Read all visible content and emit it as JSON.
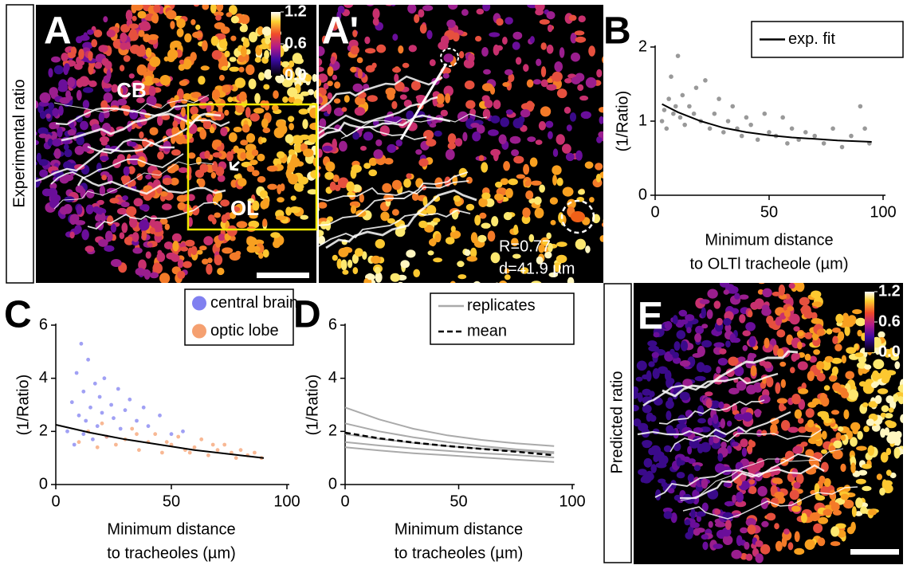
{
  "image_panels": [
    {
      "label": "A",
      "side_label": "Experimental ratio",
      "annotations": [
        "CB",
        "OL"
      ],
      "clim": [
        0,
        1.2
      ],
      "cticks": [
        1.2,
        0.6,
        {
          "value": 0,
          "label": "0.0"
        }
      ]
    },
    {
      "label": "A'",
      "annotations": [
        "R=0.77",
        "d=41.9 µm"
      ]
    },
    {
      "label": "E",
      "side_label": "Predicted ratio",
      "clim": [
        0,
        1.2
      ],
      "cticks": [
        1.2,
        0.6,
        {
          "value": 0,
          "label": "0.0"
        }
      ]
    }
  ],
  "chart_data": [
    {
      "type": "scatter",
      "label": "B",
      "ylabel": "(1/Ratio)",
      "xlabel": [
        "Minimum distance",
        "to OLTl tracheole (µm)"
      ],
      "xlim": [
        0,
        100
      ],
      "ylim": [
        0,
        2
      ],
      "xticks": [
        0,
        50,
        100
      ],
      "yticks": [
        0,
        1,
        2
      ],
      "legend": "upper right",
      "series": [
        {
          "color": "#999999",
          "style": "points",
          "x": [
            3,
            4,
            5,
            6,
            7,
            8,
            9,
            10,
            11,
            12,
            13,
            15,
            17,
            18,
            20,
            22,
            24,
            26,
            28,
            30,
            32,
            34,
            36,
            38,
            40,
            42,
            45,
            48,
            50,
            53,
            56,
            58,
            60,
            63,
            66,
            70,
            74,
            78,
            82,
            86,
            90,
            92,
            94
          ],
          "values": [
            1.0,
            1.15,
            0.9,
            1.3,
            1.6,
            1.1,
            1.2,
            1.88,
            1.05,
            1.35,
            0.95,
            1.2,
            1.1,
            1.45,
            1.0,
            1.55,
            0.9,
            1.1,
            1.3,
            0.85,
            1.0,
            1.2,
            0.9,
            0.8,
            1.05,
            0.95,
            0.75,
            1.1,
            0.85,
            0.8,
            1.05,
            0.7,
            0.9,
            0.75,
            0.85,
            0.8,
            0.7,
            0.9,
            0.65,
            0.8,
            1.2,
            0.9,
            0.7
          ]
        },
        {
          "name": "exp. fit",
          "color": "#000000",
          "style": "line",
          "x": [
            3,
            10,
            20,
            30,
            40,
            50,
            60,
            70,
            80,
            95
          ],
          "values": [
            1.23,
            1.12,
            1.0,
            0.91,
            0.85,
            0.81,
            0.78,
            0.76,
            0.74,
            0.72
          ]
        }
      ]
    },
    {
      "type": "scatter",
      "label": "C",
      "ylabel": "(1/Ratio)",
      "xlabel": [
        "Minimum distance",
        "to tracheoles (µm)"
      ],
      "xlim": [
        0,
        100
      ],
      "ylim": [
        0,
        6
      ],
      "xticks": [
        0,
        50,
        100
      ],
      "yticks": [
        0,
        2,
        4,
        6
      ],
      "legend": "upper right",
      "series": [
        {
          "name": "central brain",
          "color": "#8080f0",
          "style": "points",
          "x": [
            5,
            7,
            8,
            9,
            10,
            11,
            12,
            12,
            13,
            14,
            15,
            16,
            17,
            18,
            19,
            20,
            21,
            22,
            24,
            25,
            27,
            28,
            30,
            32,
            35,
            38,
            40,
            45,
            50,
            55
          ],
          "values": [
            2.0,
            3.1,
            1.5,
            4.2,
            2.6,
            5.3,
            1.9,
            3.5,
            2.4,
            4.7,
            2.9,
            1.7,
            3.8,
            2.2,
            3.3,
            2.7,
            4.0,
            1.8,
            3.0,
            2.5,
            3.6,
            2.1,
            2.8,
            3.2,
            2.4,
            2.9,
            2.2,
            2.6,
            1.9,
            2.0
          ]
        },
        {
          "name": "optic lobe",
          "color": "#f5a070",
          "style": "points",
          "x": [
            10,
            14,
            18,
            22,
            26,
            30,
            33,
            36,
            40,
            43,
            46,
            50,
            53,
            56,
            60,
            63,
            66,
            70,
            73,
            76,
            80,
            83,
            86,
            89,
            20,
            35,
            48,
            58,
            68,
            78
          ],
          "values": [
            1.6,
            2.0,
            1.4,
            1.8,
            1.5,
            1.7,
            2.1,
            1.3,
            1.6,
            1.9,
            1.2,
            1.5,
            1.8,
            1.3,
            1.4,
            1.7,
            1.1,
            1.3,
            1.5,
            1.2,
            1.3,
            1.1,
            1.2,
            1.0,
            2.3,
            1.9,
            1.6,
            1.2,
            1.5,
            1.0
          ]
        },
        {
          "color": "#000000",
          "style": "line",
          "x": [
            0,
            15,
            30,
            45,
            60,
            75,
            90
          ],
          "values": [
            2.25,
            1.95,
            1.7,
            1.5,
            1.3,
            1.15,
            1.0
          ]
        }
      ]
    },
    {
      "type": "line",
      "label": "D",
      "ylabel": "(1/Ratio)",
      "xlabel": [
        "Minimum distance",
        "to  tracheoles (µm)"
      ],
      "xlim": [
        0,
        100
      ],
      "ylim": [
        0,
        6
      ],
      "xticks": [
        0,
        50,
        100
      ],
      "yticks": [
        0,
        2,
        4,
        6
      ],
      "legend": "upper right",
      "series": [
        {
          "name": "replicates",
          "color": "#aaaaaa",
          "style": "line",
          "x": [
            0,
            15,
            30,
            45,
            60,
            75,
            92
          ],
          "values": [
            2.9,
            2.45,
            2.1,
            1.85,
            1.68,
            1.55,
            1.45
          ]
        },
        {
          "color": "#aaaaaa",
          "style": "line",
          "x": [
            0,
            15,
            30,
            45,
            60,
            75,
            92
          ],
          "values": [
            2.3,
            2.0,
            1.78,
            1.6,
            1.45,
            1.33,
            1.22
          ]
        },
        {
          "color": "#aaaaaa",
          "style": "line",
          "x": [
            0,
            15,
            30,
            45,
            60,
            75,
            92
          ],
          "values": [
            1.9,
            1.72,
            1.57,
            1.45,
            1.35,
            1.27,
            1.18
          ]
        },
        {
          "color": "#aaaaaa",
          "style": "line",
          "x": [
            0,
            15,
            30,
            45,
            60,
            75,
            92
          ],
          "values": [
            1.6,
            1.47,
            1.36,
            1.27,
            1.18,
            1.11,
            1.02
          ]
        },
        {
          "color": "#aaaaaa",
          "style": "line",
          "x": [
            0,
            15,
            30,
            45,
            60,
            75,
            92
          ],
          "values": [
            1.4,
            1.28,
            1.18,
            1.1,
            1.02,
            0.94,
            0.85
          ]
        },
        {
          "name": "mean",
          "color": "#000000",
          "style": "dashed",
          "x": [
            0,
            15,
            30,
            45,
            60,
            75,
            92
          ],
          "values": [
            1.95,
            1.74,
            1.58,
            1.45,
            1.34,
            1.24,
            1.1
          ]
        }
      ]
    }
  ]
}
